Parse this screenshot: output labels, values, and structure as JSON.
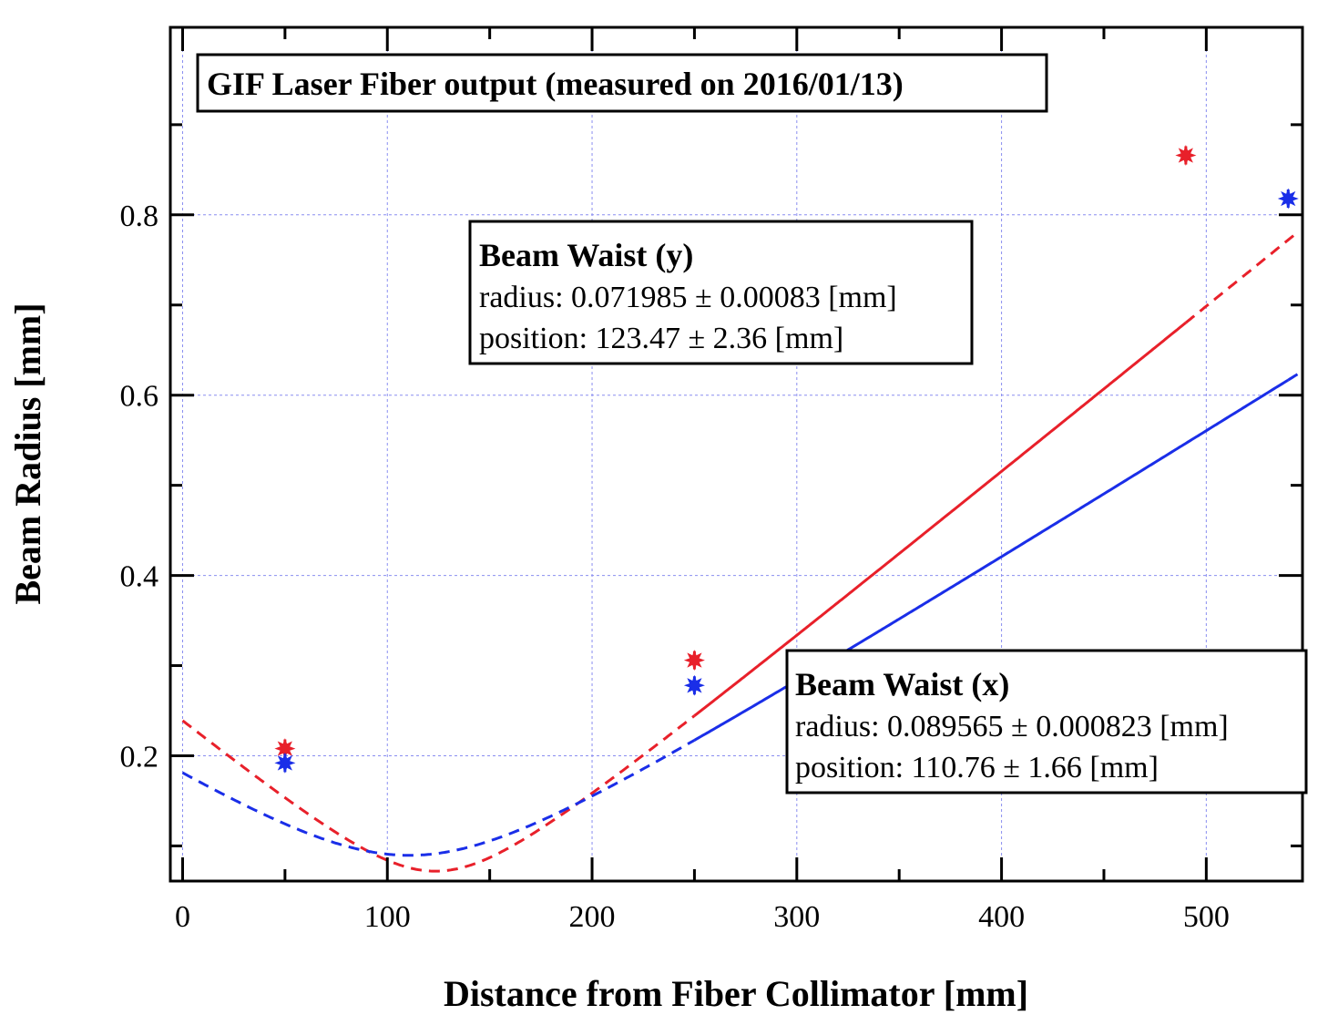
{
  "chart_data": {
    "type": "scatter",
    "title": "GIF Laser Fiber output (measured on 2016/01/13)",
    "xlabel": "Distance from Fiber Collimator [mm]",
    "ylabel": "Beam Radius [mm]",
    "xlim": [
      -6,
      547
    ],
    "ylim": [
      0.061,
      1.008
    ],
    "xticks": [
      0,
      100,
      200,
      300,
      400,
      500
    ],
    "yticks": [
      0.2,
      0.4,
      0.6,
      0.8
    ],
    "xtick_labels": [
      "0",
      "100",
      "200",
      "300",
      "400",
      "500"
    ],
    "ytick_labels": [
      "0.2",
      "0.4",
      "0.6",
      "0.8"
    ],
    "grid": true,
    "series": [
      {
        "color": "#e8202a",
        "points": [
          {
            "x": 50,
            "y": 0.208
          },
          {
            "x": 250,
            "y": 0.306
          },
          {
            "x": 490,
            "y": 0.866
          }
        ],
        "fit": {
          "w0": 0.071985,
          "z0": 123.47,
          "zr": 39.0
        }
      },
      {
        "color": "#1a2ee8",
        "points": [
          {
            "x": 50,
            "y": 0.192
          },
          {
            "x": 250,
            "y": 0.278
          },
          {
            "x": 540,
            "y": 0.818
          }
        ],
        "fit": {
          "w0": 0.089565,
          "z0": 110.76,
          "zr": 63.0
        }
      }
    ],
    "annotations": [
      {
        "title": "Beam Waist (y)",
        "radius": "radius: 0.071985 ± 0.00083 [mm]",
        "position": "position: 123.47 ± 2.36 [mm]"
      },
      {
        "title": "Beam Waist (x)",
        "radius": "radius: 0.089565 ± 0.000823 [mm]",
        "position": "position: 110.76 ± 1.66 [mm]"
      }
    ]
  }
}
